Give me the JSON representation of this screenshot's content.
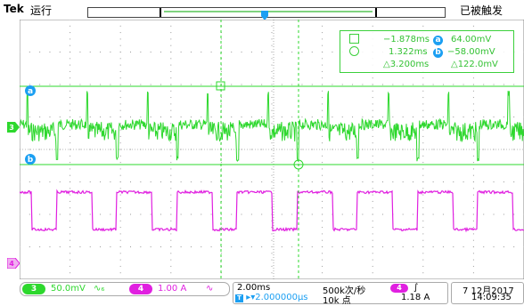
{
  "header": {
    "brand": "Tek",
    "state": "运行",
    "trigger_status": "已被触发"
  },
  "channels": {
    "ch3": {
      "label": "3",
      "color": "#2ed82e"
    },
    "ch4": {
      "label": "4",
      "color": "#e020e0"
    }
  },
  "cursors": {
    "a_label": "a",
    "b_label": "b",
    "a_time": "−1.878ms",
    "b_time": "1.322ms",
    "delta_time": "△3.200ms",
    "a_value": "64.00mV",
    "b_value": "−58.00mV",
    "delta_value": "△122.0mV"
  },
  "trigger": {
    "label": "T"
  },
  "bottom": {
    "ch3_label": "3",
    "ch3_scale": "50.0mV",
    "ch3_bw": "∿₆",
    "ch4_label": "4",
    "ch4_scale": "1.00 A",
    "ch4_bw": "∿",
    "timebase": "2.00ms",
    "position": "▸▾2.000000μs",
    "sample_rate": "500k次/秒",
    "record_length": "10k 点",
    "trigger_source": "4",
    "trigger_slope": "∫",
    "trigger_level": "1.18 A",
    "date": "7 12月2017",
    "time": "14:09:35"
  }
}
